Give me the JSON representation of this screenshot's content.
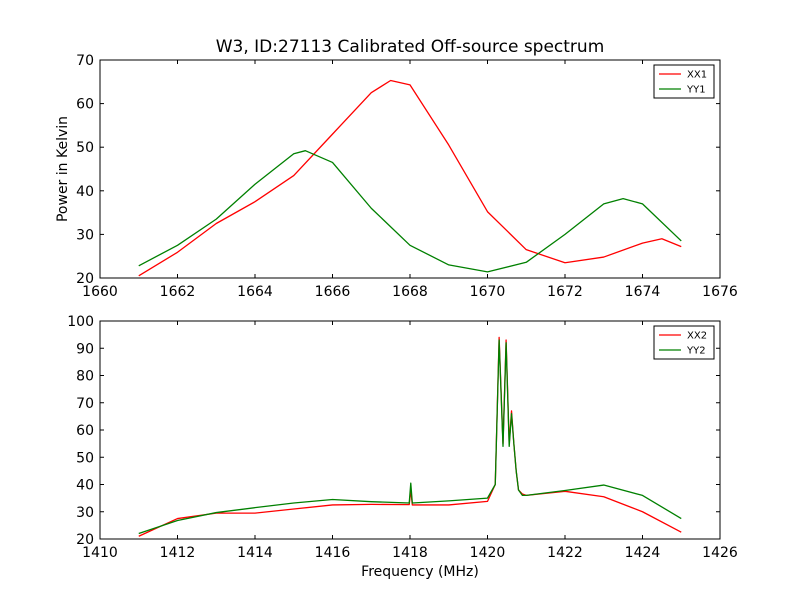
{
  "figure": {
    "title": "W3, ID:27113 Calibrated Off-source spectrum"
  },
  "chart_data": [
    {
      "type": "line",
      "title": "W3, ID:27113 Calibrated Off-source spectrum",
      "xlabel": "",
      "ylabel": "Power in Kelvin",
      "xlim": [
        1660,
        1676
      ],
      "ylim": [
        20,
        70
      ],
      "xticks": [
        1660,
        1662,
        1664,
        1666,
        1668,
        1670,
        1672,
        1674,
        1676
      ],
      "yticks": [
        20,
        30,
        40,
        50,
        60,
        70
      ],
      "grid": false,
      "legend": "top-right",
      "series": [
        {
          "name": "XX1",
          "color": "#ff0000",
          "x": [
            1661,
            1662,
            1663,
            1664,
            1665,
            1666,
            1667,
            1667.5,
            1668,
            1669,
            1670,
            1671,
            1672,
            1673,
            1674,
            1674.5,
            1675
          ],
          "y": [
            20.5,
            25.9,
            32.5,
            37.5,
            43.5,
            53,
            62.5,
            65.3,
            64.3,
            50.5,
            35.2,
            26.5,
            23.5,
            24.8,
            28,
            29,
            27.2
          ]
        },
        {
          "name": "YY1",
          "color": "#008000",
          "x": [
            1661,
            1662,
            1663,
            1664,
            1665,
            1665.3,
            1666,
            1667,
            1668,
            1669,
            1670,
            1671,
            1672,
            1673,
            1673.5,
            1674,
            1675
          ],
          "y": [
            22.8,
            27.5,
            33.5,
            41.5,
            48.5,
            49.2,
            46.5,
            36,
            27.5,
            23,
            21.4,
            23.6,
            30,
            37,
            38.2,
            37,
            28.5
          ]
        }
      ]
    },
    {
      "type": "line",
      "title": "",
      "xlabel": "Frequency (MHz)",
      "ylabel": "",
      "xlim": [
        1410,
        1426
      ],
      "ylim": [
        20,
        100
      ],
      "xticks": [
        1410,
        1412,
        1414,
        1416,
        1418,
        1420,
        1422,
        1424,
        1426
      ],
      "yticks": [
        20,
        30,
        40,
        50,
        60,
        70,
        80,
        90,
        100
      ],
      "grid": false,
      "legend": "top-right",
      "series": [
        {
          "name": "XX2",
          "color": "#ff0000",
          "x": [
            1411,
            1412,
            1413,
            1414,
            1415,
            1416,
            1417,
            1417.98,
            1418.02,
            1418.06,
            1419,
            1420,
            1420.2,
            1420.3,
            1420.4,
            1420.48,
            1420.56,
            1420.62,
            1420.68,
            1420.74,
            1420.8,
            1420.9,
            1421,
            1422,
            1423,
            1424,
            1425
          ],
          "y": [
            21,
            27.5,
            29.5,
            29.5,
            31,
            32.5,
            32.7,
            32.6,
            38,
            32.5,
            32.5,
            33.8,
            40,
            94,
            55,
            93,
            55,
            67,
            55,
            45,
            38,
            36.5,
            36,
            37.5,
            35.5,
            30,
            22.5
          ]
        },
        {
          "name": "YY2",
          "color": "#008000",
          "x": [
            1411,
            1412,
            1413,
            1414,
            1415,
            1416,
            1417,
            1417.98,
            1418.02,
            1418.06,
            1419,
            1420,
            1420.2,
            1420.3,
            1420.4,
            1420.48,
            1420.56,
            1420.62,
            1420.68,
            1420.74,
            1420.8,
            1420.9,
            1421,
            1422,
            1423,
            1424,
            1425
          ],
          "y": [
            22,
            26.8,
            29.7,
            31.5,
            33.2,
            34.5,
            33.7,
            33.2,
            40.5,
            33.2,
            34,
            35,
            40,
            93,
            54,
            92,
            54,
            66,
            55,
            45,
            38,
            36,
            36,
            37.8,
            39.8,
            36,
            27.5
          ]
        }
      ]
    }
  ]
}
